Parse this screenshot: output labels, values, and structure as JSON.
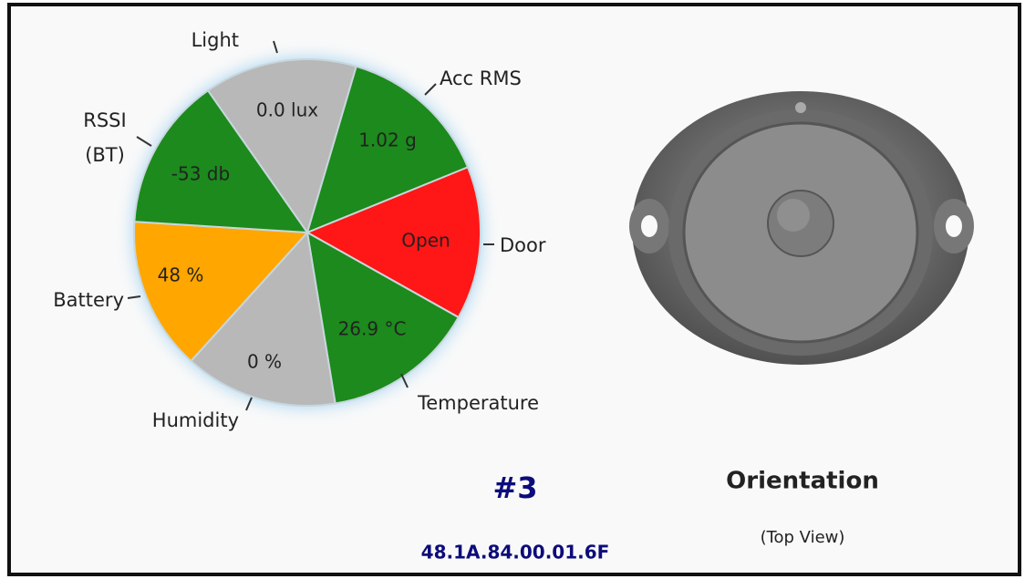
{
  "segments": [
    {
      "label": "Light",
      "value_text": "0.0 lux",
      "color": "#b8b8b8"
    },
    {
      "label": "Acc RMS",
      "value_text": "1.02 g",
      "color": "#1e8a1e"
    },
    {
      "label": "Door",
      "value_text": "Open",
      "color": "#ff1212"
    },
    {
      "label": "Temperature",
      "value_text": "26.9 °C",
      "color": "#1e8a1e"
    },
    {
      "label": "Humidity",
      "value_text": "0 %",
      "color": "#b8b8b8"
    },
    {
      "label": "Battery",
      "value_text": "48 %",
      "color": "#ffa600"
    },
    {
      "label": "RSSI (BT)",
      "value_text": "-53 db",
      "color": "#1e8a1e"
    }
  ],
  "device": {
    "number": "#3",
    "address": "48.1A.84.00.01.6F"
  },
  "orientation": {
    "title": "Orientation",
    "subtitle": "(Top View)"
  }
}
